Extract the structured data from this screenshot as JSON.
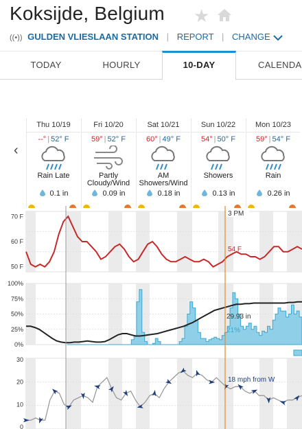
{
  "header": {
    "city": "Koksijde, Belgium",
    "station": "GULDEN VLIESLAAN STATION",
    "report_link": "REPORT",
    "change_link": "CHANGE"
  },
  "tabs": [
    {
      "label": "TODAY"
    },
    {
      "label": "HOURLY"
    },
    {
      "label": "10-DAY"
    },
    {
      "label": "CALENDAR"
    }
  ],
  "days": [
    {
      "date": "Thu 10/19",
      "hi": "--°",
      "lo": "52° F",
      "cond1": "Rain Late",
      "cond2": "",
      "precip": "0.1 in",
      "icon": "rain-icon"
    },
    {
      "date": "Fri 10/20",
      "hi": "59°",
      "lo": "52° F",
      "cond1": "Partly",
      "cond2": "Cloudy/Wind",
      "precip": "0.09 in",
      "icon": "wind-icon"
    },
    {
      "date": "Sat 10/21",
      "hi": "60°",
      "lo": "49° F",
      "cond1": "AM",
      "cond2": "Showers/Wind",
      "precip": "0.18 in",
      "icon": "showers-icon"
    },
    {
      "date": "Sun 10/22",
      "hi": "54°",
      "lo": "50° F",
      "cond1": "Showers",
      "cond2": "",
      "precip": "0.13 in",
      "icon": "showers-icon"
    },
    {
      "date": "Mon 10/23",
      "hi": "59°",
      "lo": "54° F",
      "cond1": "Rain",
      "cond2": "",
      "precip": "0.26 in",
      "icon": "rain-icon"
    }
  ],
  "charts": {
    "cursor_time": "3 PM",
    "temp": {
      "y_ticks": [
        "70 F",
        "60 F",
        "50 F"
      ],
      "ylim": [
        48,
        72
      ],
      "cursor_value": "54 F",
      "values": [
        56,
        51,
        50,
        51,
        50,
        52,
        56,
        63,
        68,
        70,
        66,
        62,
        60,
        60,
        58,
        56,
        53,
        54,
        56,
        58,
        59,
        57,
        54,
        52,
        53,
        56,
        59,
        60,
        58,
        55,
        53,
        52,
        52,
        53,
        54,
        53,
        52,
        52,
        53,
        52,
        50,
        51,
        52,
        54,
        55,
        56,
        55,
        55,
        54,
        54,
        53,
        54,
        56,
        58,
        58,
        56,
        56,
        57,
        58,
        57
      ]
    },
    "precip": {
      "y_ticks": [
        "100%",
        "75%",
        "50%",
        "25%",
        "0%"
      ],
      "pressure_label": "29.93 in",
      "chance_label": "21%",
      "chance": [
        0,
        0,
        0,
        0,
        0,
        0,
        0,
        0,
        0,
        0,
        0,
        0,
        0,
        0,
        0,
        0,
        0,
        0,
        0,
        0,
        0,
        0,
        0,
        0,
        8,
        15,
        70,
        90,
        20,
        5,
        0,
        0,
        2,
        10,
        5,
        0,
        0,
        0,
        0,
        0,
        0,
        0,
        5,
        10,
        30,
        50,
        70,
        60,
        40,
        20,
        10,
        10,
        5,
        8,
        10,
        12,
        10,
        8,
        15,
        20,
        30,
        60,
        85,
        75,
        50,
        30,
        25,
        30,
        35,
        25,
        30,
        20,
        15,
        22,
        20,
        30,
        25,
        40,
        50,
        60,
        55,
        55,
        45,
        50,
        65,
        50,
        55,
        45
      ],
      "pressure": [
        30,
        30,
        28,
        25,
        20,
        15,
        10,
        6,
        4,
        3,
        3,
        4,
        4,
        5,
        6,
        5,
        4,
        4,
        5,
        8,
        12,
        16,
        18,
        18,
        16,
        14,
        14,
        15,
        16,
        17,
        18,
        20,
        22,
        24,
        26,
        28,
        30,
        33,
        36,
        40,
        44,
        48,
        52,
        56,
        58,
        60,
        62,
        64,
        66,
        66,
        67,
        67,
        68,
        68,
        68,
        68,
        68,
        68,
        68,
        68,
        69,
        69,
        70,
        70
      ]
    },
    "wind": {
      "y_ticks": [
        "30",
        "20",
        "10",
        "0"
      ],
      "ylim": [
        0,
        30
      ],
      "cursor_value": "18 mph from W",
      "values": [
        3,
        3,
        4,
        3,
        3,
        12,
        16,
        15,
        10,
        9,
        12,
        13,
        14,
        13,
        11,
        18,
        20,
        22,
        17,
        13,
        12,
        15,
        16,
        12,
        9,
        11,
        14,
        15,
        13,
        17,
        20,
        22,
        24,
        25,
        23,
        22,
        24,
        23,
        21,
        20,
        22,
        20,
        18,
        17,
        18,
        18,
        16,
        15,
        16,
        14,
        14,
        12,
        13,
        12,
        11,
        12,
        12,
        13,
        14
      ]
    }
  },
  "colors": {
    "temp_line": "#c62828",
    "precip_fill": "#8fd0e8",
    "precip_stroke": "#3aa7cf",
    "pressure_line": "#222222",
    "wind_line": "#9a9a9a",
    "wind_marker": "#1f3d7a",
    "cursor": "#e28a2a"
  }
}
